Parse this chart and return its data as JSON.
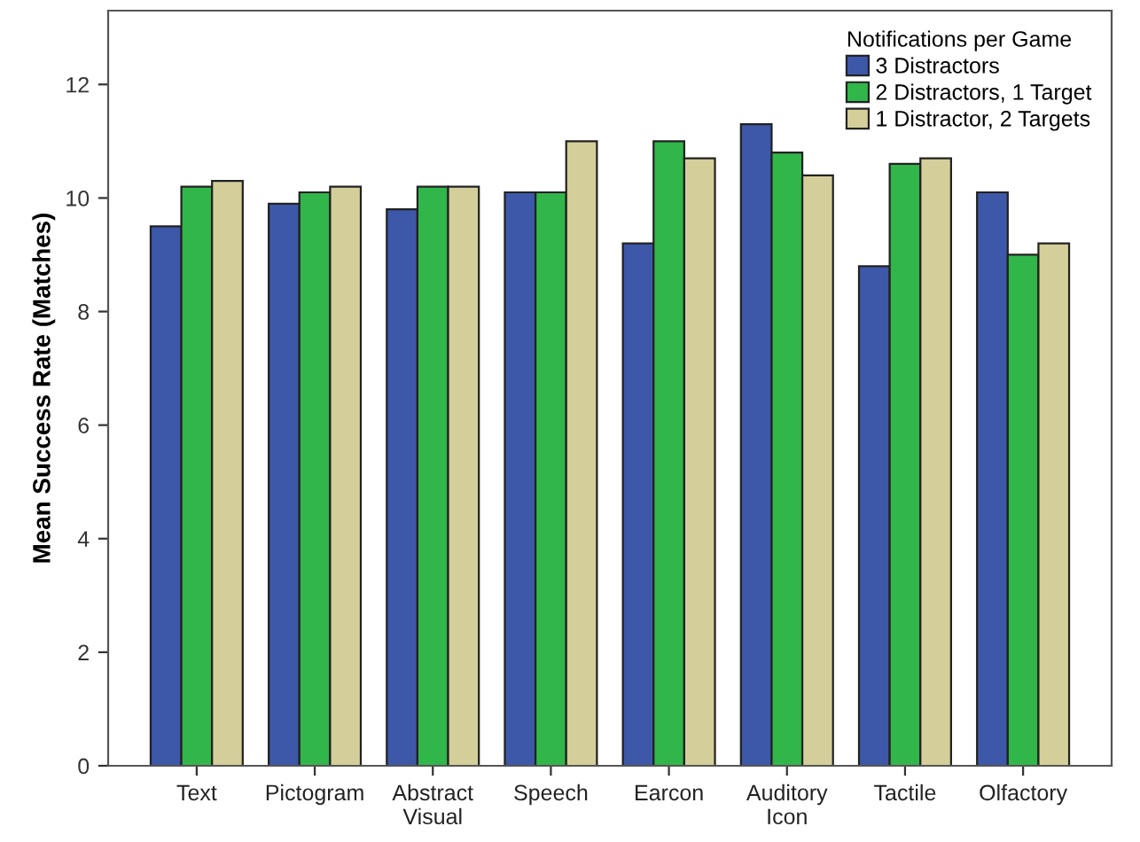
{
  "chart_data": {
    "type": "bar",
    "ylabel": "Mean Success Rate (Matches)",
    "legend_title": "Notifications per Game",
    "categories": [
      "Text",
      "Pictogram",
      "Abstract\nVisual",
      "Speech",
      "Earcon",
      "Auditory\nIcon",
      "Tactile",
      "Olfactory"
    ],
    "series": [
      {
        "name": "3 Distractors",
        "color": "#3d58a8",
        "values": [
          9.5,
          9.9,
          9.8,
          10.1,
          9.2,
          11.3,
          8.8,
          10.1
        ]
      },
      {
        "name": "2 Distractors, 1 Target",
        "color": "#31b64a",
        "values": [
          10.2,
          10.1,
          10.2,
          10.1,
          11.0,
          10.8,
          10.6,
          9.0
        ]
      },
      {
        "name": "1 Distractor, 2 Targets",
        "color": "#d4cf9a",
        "values": [
          10.3,
          10.2,
          10.2,
          11.0,
          10.7,
          10.4,
          10.7,
          9.2
        ]
      }
    ],
    "ylim": [
      0,
      13.3
    ],
    "yticks": [
      0,
      2,
      4,
      6,
      8,
      10,
      12
    ],
    "grid": false,
    "legend": "top right"
  }
}
